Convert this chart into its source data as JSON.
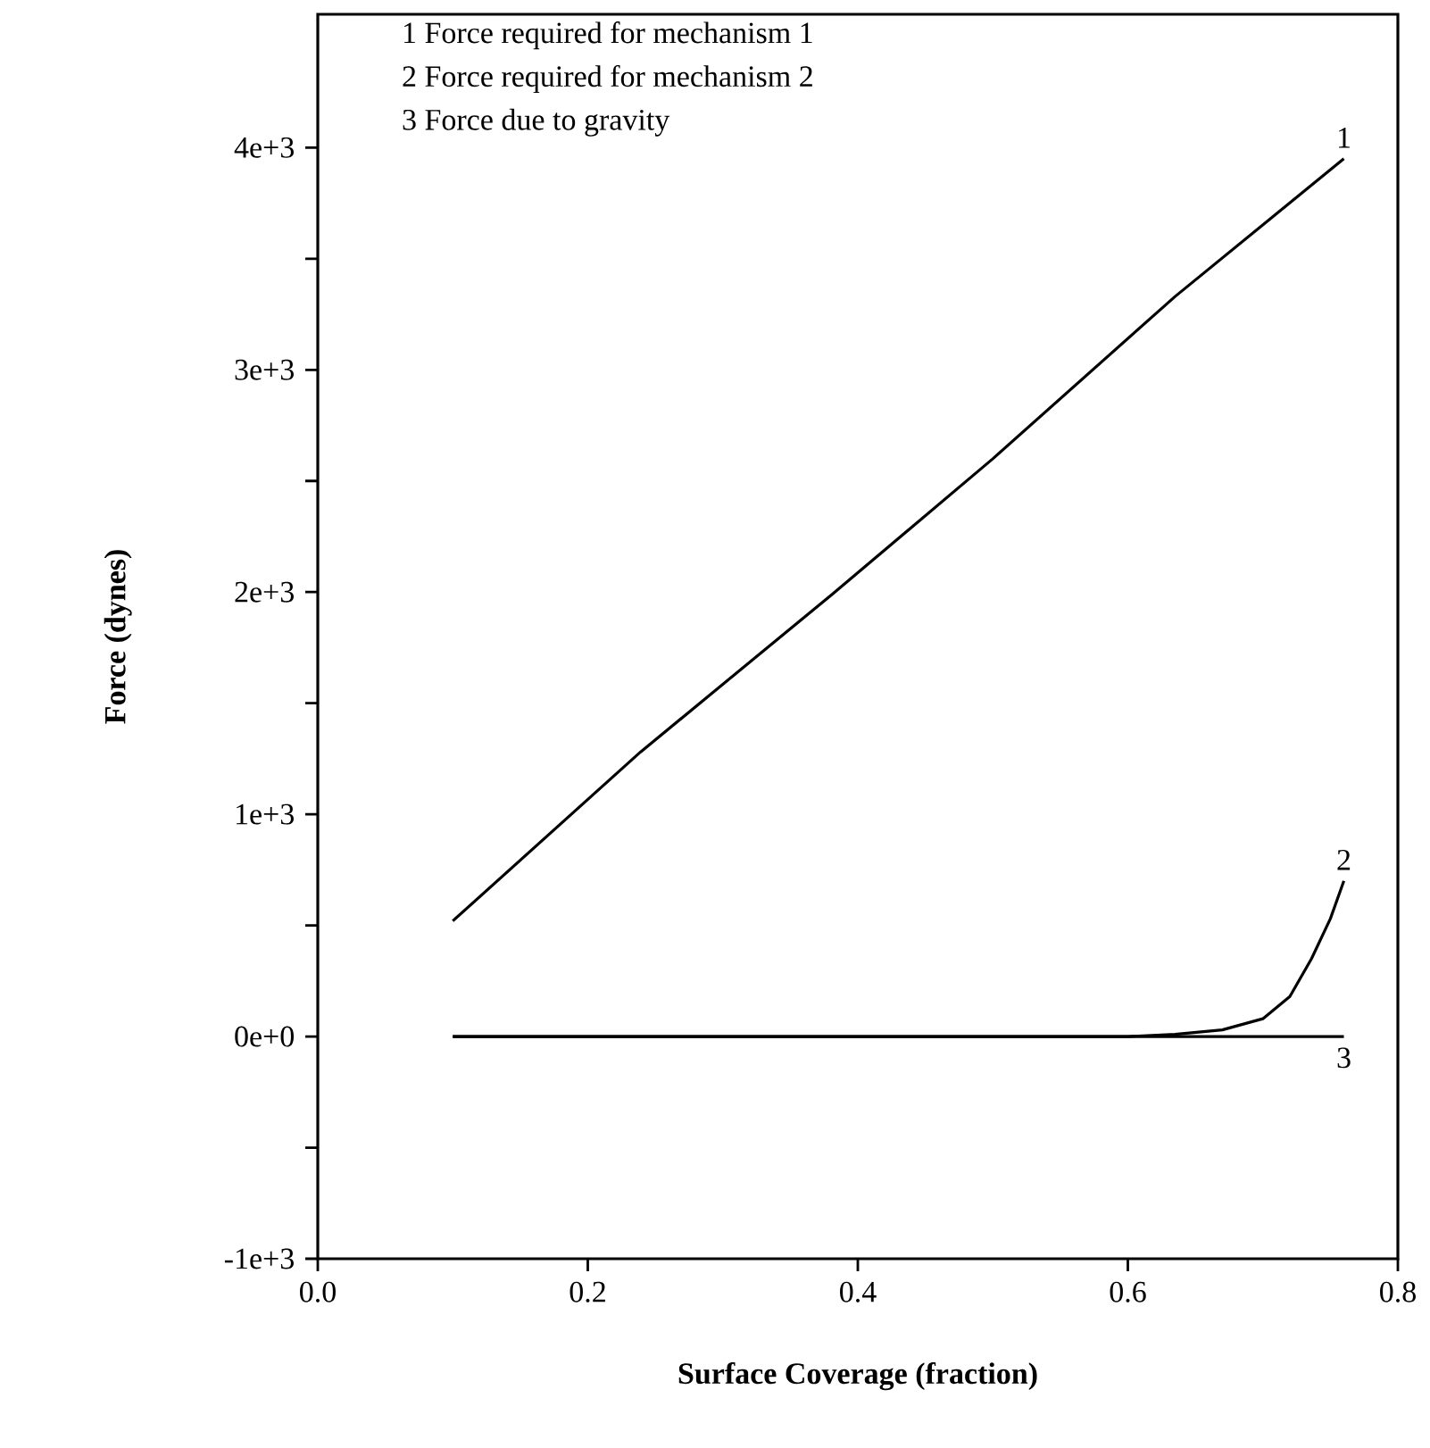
{
  "chart_data": {
    "type": "line",
    "xlabel": "Surface Coverage (fraction)",
    "ylabel": "Force (dynes)",
    "xlim": [
      0,
      0.8
    ],
    "ylim": [
      -1000,
      4600
    ],
    "xticks": [
      {
        "value": 0,
        "label": "0.0"
      },
      0.2,
      0.4,
      0.6,
      0.8
    ],
    "yticks": [
      {
        "value": -1000,
        "label": "-1e+3"
      },
      {
        "value": -500,
        "label": null
      },
      {
        "value": 0,
        "label": "0e+0"
      },
      {
        "value": 500,
        "label": null
      },
      {
        "value": 1000,
        "label": "1e+3"
      },
      {
        "value": 1500,
        "label": null
      },
      {
        "value": 2000,
        "label": "2e+3"
      },
      {
        "value": 2500,
        "label": null
      },
      {
        "value": 3000,
        "label": "3e+3"
      },
      {
        "value": 3500,
        "label": null
      },
      {
        "value": 4000,
        "label": "4e+3"
      }
    ],
    "grid": false,
    "legend": false,
    "marker": "none",
    "line_style": "solid",
    "series": [
      {
        "name": "1",
        "color": "#000000",
        "x": [
          0.1,
          0.239,
          0.381,
          0.5,
          0.635,
          0.76
        ],
        "values": [
          520,
          1280,
          1990,
          2600,
          3330,
          3950
        ]
      },
      {
        "name": "2",
        "color": "#000000",
        "x": [
          0.1,
          0.6,
          0.635,
          0.67,
          0.7,
          0.72,
          0.736,
          0.75,
          0.76
        ],
        "values": [
          0,
          0,
          10,
          30,
          80,
          180,
          350,
          530,
          700
        ]
      },
      {
        "name": "3",
        "color": "#000000",
        "x": [
          0.1,
          0.76
        ],
        "values": [
          0,
          0
        ]
      }
    ],
    "annotations": [
      "1  Force required for mechanism 1",
      "2  Force required for mechanism 2",
      "3  Force due to gravity"
    ]
  }
}
